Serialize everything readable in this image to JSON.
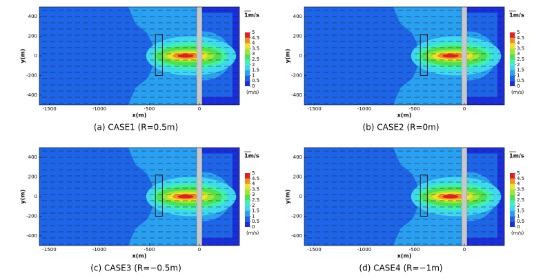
{
  "chart_data": [
    {
      "type": "contour",
      "caption": "(a) CASE1 (R=0.5m)",
      "x_label": "x(m)",
      "y_label": "y(m)",
      "xlim": [
        -1600,
        400
      ],
      "ylim": [
        -500,
        500
      ],
      "xticks": [
        -1500,
        -1000,
        -500,
        0
      ],
      "yticks": [
        -400,
        -200,
        0,
        200,
        400
      ],
      "levels": [
        0,
        0.5,
        1,
        1.5,
        2,
        2.5,
        3,
        3.5,
        4,
        4.5,
        5
      ],
      "level_colors": [
        "#1a2fd8",
        "#1e64e6",
        "#2aa0f0",
        "#40d8f0",
        "#40f0b0",
        "#50e050",
        "#a0e830",
        "#f0e030",
        "#f09020",
        "#e02020"
      ],
      "colorbar_label": "(m/s)",
      "vector_scale_label": "1m/s"
    },
    {
      "type": "contour",
      "caption": "(b) CASE2 (R=0m)",
      "x_label": "x(m)",
      "y_label": "y(m)",
      "xlim": [
        -1600,
        400
      ],
      "ylim": [
        -500,
        500
      ],
      "xticks": [
        -1500,
        -1000,
        -500,
        0
      ],
      "yticks": [
        -400,
        -200,
        0,
        200,
        400
      ],
      "levels": [
        0,
        0.5,
        1,
        1.5,
        2,
        2.5,
        3,
        3.5,
        4,
        4.5,
        5
      ],
      "level_colors": [
        "#1a2fd8",
        "#1e64e6",
        "#2aa0f0",
        "#40d8f0",
        "#40f0b0",
        "#50e050",
        "#a0e830",
        "#f0e030",
        "#f09020",
        "#e02020"
      ],
      "colorbar_label": "(m/s)",
      "vector_scale_label": "1m/s"
    },
    {
      "type": "contour",
      "caption": "(c) CASE3 (R=−0.5m)",
      "x_label": "x(m)",
      "y_label": "y(m)",
      "xlim": [
        -1600,
        400
      ],
      "ylim": [
        -500,
        500
      ],
      "xticks": [
        -1500,
        -1000,
        -500,
        0
      ],
      "yticks": [
        -400,
        -200,
        0,
        200,
        400
      ],
      "levels": [
        0,
        0.5,
        1,
        1.5,
        2,
        2.5,
        3,
        3.5,
        4,
        4.5,
        5
      ],
      "level_colors": [
        "#1a2fd8",
        "#1e64e6",
        "#2aa0f0",
        "#40d8f0",
        "#40f0b0",
        "#50e050",
        "#a0e830",
        "#f0e030",
        "#f09020",
        "#e02020"
      ],
      "colorbar_label": "(m/s)",
      "vector_scale_label": "1m/s"
    },
    {
      "type": "contour",
      "caption": "(d) CASE4 (R=−1m)",
      "x_label": "x(m)",
      "y_label": "y(m)",
      "xlim": [
        -1600,
        400
      ],
      "ylim": [
        -500,
        500
      ],
      "xticks": [
        -1500,
        -1000,
        -500,
        0
      ],
      "yticks": [
        -400,
        -200,
        0,
        200,
        400
      ],
      "levels": [
        0,
        0.5,
        1,
        1.5,
        2,
        2.5,
        3,
        3.5,
        4,
        4.5,
        5
      ],
      "level_colors": [
        "#1a2fd8",
        "#1e64e6",
        "#2aa0f0",
        "#40d8f0",
        "#40f0b0",
        "#50e050",
        "#a0e830",
        "#f0e030",
        "#f09020",
        "#e02020"
      ],
      "colorbar_label": "(m/s)",
      "vector_scale_label": "1m/s"
    }
  ]
}
